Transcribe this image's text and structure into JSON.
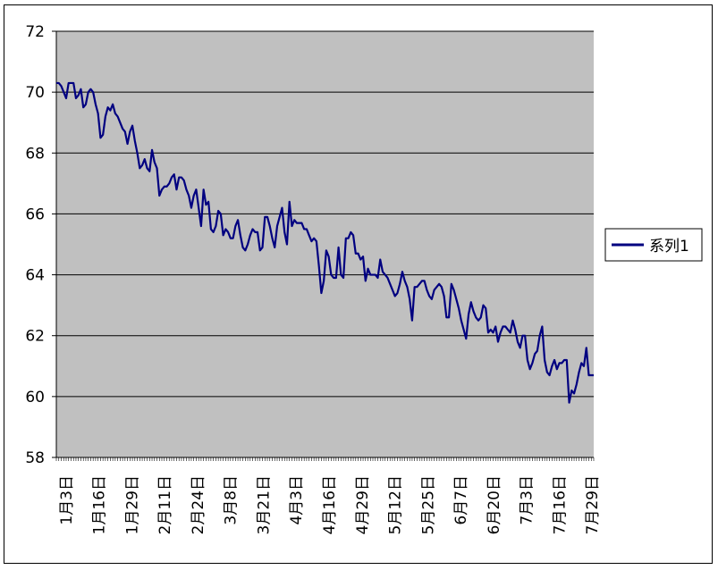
{
  "chart_data": {
    "type": "line",
    "title": "",
    "xlabel": "",
    "ylabel": "",
    "ylim": [
      58,
      72
    ],
    "yticks": [
      58,
      60,
      62,
      64,
      66,
      68,
      70,
      72
    ],
    "grid": "horizontal",
    "legend_position": "right",
    "colors": {
      "plot_bg": "#c0c0c0",
      "series": "#000080",
      "grid": "#000000"
    },
    "x_tick_labels": [
      "1月3日",
      "1月16日",
      "1月29日",
      "2月11日",
      "2月24日",
      "3月8日",
      "3月21日",
      "4月3日",
      "4月16日",
      "4月29日",
      "5月12日",
      "5月25日",
      "6月7日",
      "6月20日",
      "7月3日",
      "7月16日",
      "7月29日"
    ],
    "series": [
      {
        "name": "系列1",
        "values": [
          70.3,
          70.3,
          70.2,
          70.0,
          69.8,
          70.3,
          70.3,
          70.3,
          69.8,
          69.9,
          70.1,
          69.5,
          69.6,
          70.0,
          70.1,
          70.0,
          69.6,
          69.3,
          68.5,
          68.6,
          69.2,
          69.5,
          69.4,
          69.6,
          69.3,
          69.2,
          69.0,
          68.8,
          68.7,
          68.3,
          68.7,
          68.9,
          68.4,
          68.0,
          67.5,
          67.6,
          67.8,
          67.5,
          67.4,
          68.1,
          67.7,
          67.5,
          66.6,
          66.8,
          66.9,
          66.9,
          67.0,
          67.2,
          67.3,
          66.8,
          67.2,
          67.2,
          67.1,
          66.8,
          66.6,
          66.2,
          66.6,
          66.8,
          66.2,
          65.6,
          66.8,
          66.3,
          66.4,
          65.5,
          65.4,
          65.6,
          66.1,
          66.0,
          65.3,
          65.5,
          65.4,
          65.2,
          65.2,
          65.6,
          65.8,
          65.3,
          64.9,
          64.8,
          65.0,
          65.3,
          65.5,
          65.4,
          65.4,
          64.8,
          64.9,
          65.9,
          65.9,
          65.6,
          65.2,
          64.9,
          65.6,
          65.9,
          66.2,
          65.4,
          65.0,
          66.4,
          65.6,
          65.8,
          65.7,
          65.7,
          65.7,
          65.5,
          65.5,
          65.3,
          65.1,
          65.2,
          65.1,
          64.3,
          63.4,
          63.8,
          64.8,
          64.6,
          64.0,
          63.9,
          63.9,
          64.9,
          64.0,
          63.9,
          65.2,
          65.2,
          65.4,
          65.3,
          64.7,
          64.7,
          64.5,
          64.6,
          63.8,
          64.2,
          64.0,
          64.0,
          64.0,
          63.9,
          64.5,
          64.1,
          64.0,
          63.9,
          63.7,
          63.5,
          63.3,
          63.4,
          63.7,
          64.1,
          63.8,
          63.6,
          63.2,
          62.5,
          63.6,
          63.6,
          63.7,
          63.8,
          63.8,
          63.5,
          63.3,
          63.2,
          63.5,
          63.6,
          63.7,
          63.6,
          63.3,
          62.6,
          62.6,
          63.7,
          63.5,
          63.2,
          62.9,
          62.5,
          62.2,
          61.9,
          62.7,
          63.1,
          62.8,
          62.6,
          62.5,
          62.6,
          63.0,
          62.9,
          62.1,
          62.2,
          62.1,
          62.3,
          61.8,
          62.1,
          62.3,
          62.3,
          62.2,
          62.1,
          62.5,
          62.2,
          61.8,
          61.6,
          62.0,
          62.0,
          61.2,
          60.9,
          61.1,
          61.4,
          61.5,
          62.0,
          62.3,
          61.2,
          60.8,
          60.7,
          61.0,
          61.2,
          60.9,
          61.1,
          61.1,
          61.2,
          61.2,
          59.8,
          60.2,
          60.1,
          60.4,
          60.8,
          61.1,
          61.0,
          61.6,
          60.7,
          60.7,
          60.7
        ]
      }
    ]
  }
}
